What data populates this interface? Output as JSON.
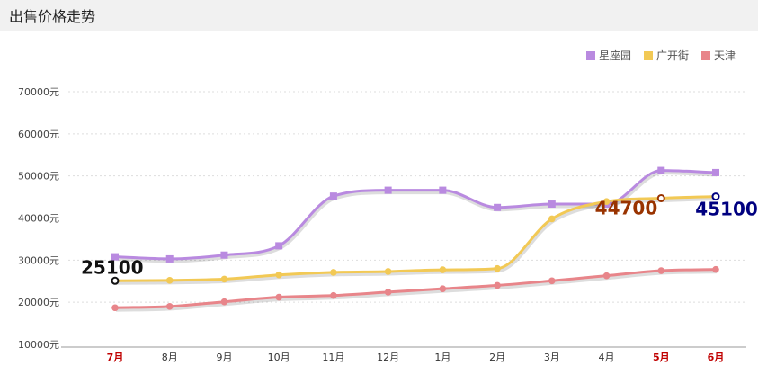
{
  "header": {
    "title": "出售价格走势"
  },
  "chart_data": {
    "type": "line",
    "title": "出售价格走势",
    "categories": [
      "7月",
      "8月",
      "9月",
      "10月",
      "11月",
      "12月",
      "1月",
      "2月",
      "3月",
      "4月",
      "5月",
      "6月"
    ],
    "highlight_categories": [
      "7月",
      "5月",
      "6月"
    ],
    "yticks": [
      "10000元",
      "20000元",
      "30000元",
      "40000元",
      "50000元",
      "60000元",
      "70000元"
    ],
    "ylim": [
      10000,
      70000
    ],
    "grid": true,
    "legend_position": "top-right",
    "series": [
      {
        "name": "星座园",
        "color": "#b98ae0",
        "marker": "square",
        "values": [
          30800,
          30300,
          31200,
          33400,
          45200,
          46600,
          46600,
          42500,
          43300,
          43300,
          51300,
          50800
        ]
      },
      {
        "name": "广开街",
        "color": "#f2c955",
        "marker": "circle",
        "values": [
          25100,
          25200,
          25500,
          26500,
          27100,
          27300,
          27700,
          28000,
          39800,
          43900,
          44700,
          45100
        ]
      },
      {
        "name": "天津",
        "color": "#e8858a",
        "marker": "circle",
        "values": [
          18700,
          19000,
          20100,
          21200,
          21600,
          22400,
          23200,
          24000,
          25100,
          26300,
          27500,
          27800
        ]
      }
    ],
    "annotations": [
      {
        "text": "25100",
        "series": 1,
        "index": 0,
        "color": "#111111"
      },
      {
        "text": "44700",
        "series": 1,
        "index": 10,
        "color": "#993300"
      },
      {
        "text": "45100",
        "series": 1,
        "index": 11,
        "color": "#000080"
      }
    ]
  }
}
